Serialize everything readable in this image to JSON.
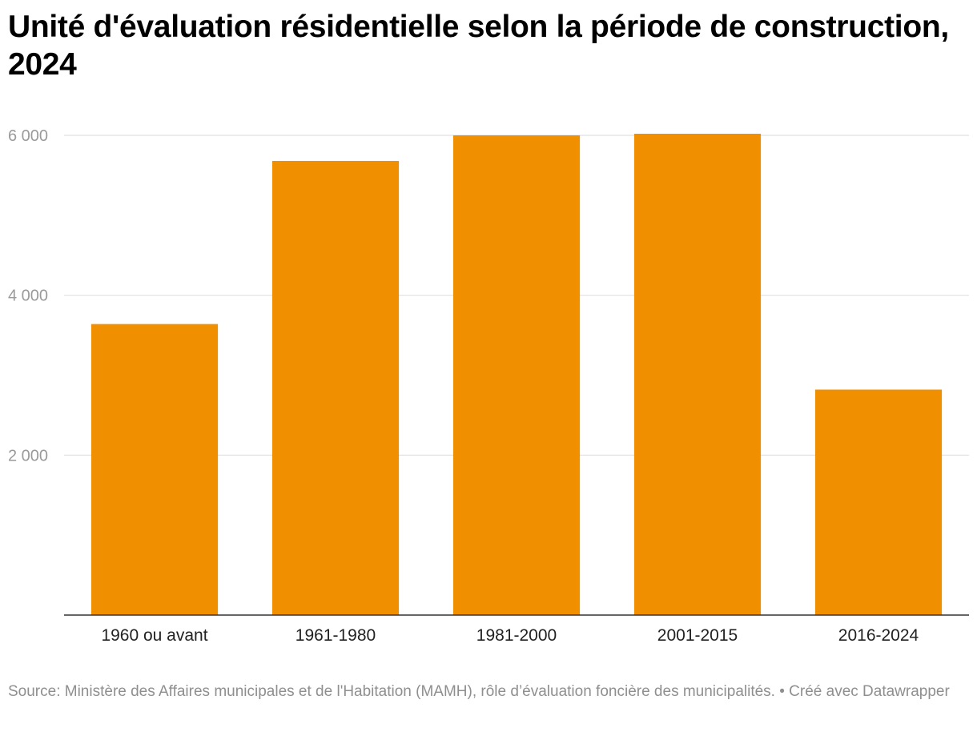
{
  "chart_data": {
    "type": "bar",
    "title": "Unité d'évaluation résidentielle selon la période de construction, 2024",
    "xlabel": "",
    "ylabel": "",
    "categories": [
      "1960 ou avant",
      "1961-1980",
      "1981-2000",
      "2001-2015",
      "2016-2024"
    ],
    "values": [
      3640,
      5680,
      6000,
      6020,
      2820
    ],
    "ylim": [
      0,
      6000
    ],
    "yticks": [
      2000,
      4000,
      6000
    ],
    "ytick_labels": [
      "2 000",
      "4 000",
      "6 000"
    ],
    "grid": true,
    "legend": "none",
    "bar_color": "#f09000"
  },
  "footer": {
    "source": "Source: Ministère des Affaires municipales et de l'Habitation (MAMH), rôle d’évaluation foncière des municipalités. • Créé avec Datawrapper"
  },
  "colors": {
    "gridline": "#e0e0e0",
    "baseline": "#333333"
  }
}
